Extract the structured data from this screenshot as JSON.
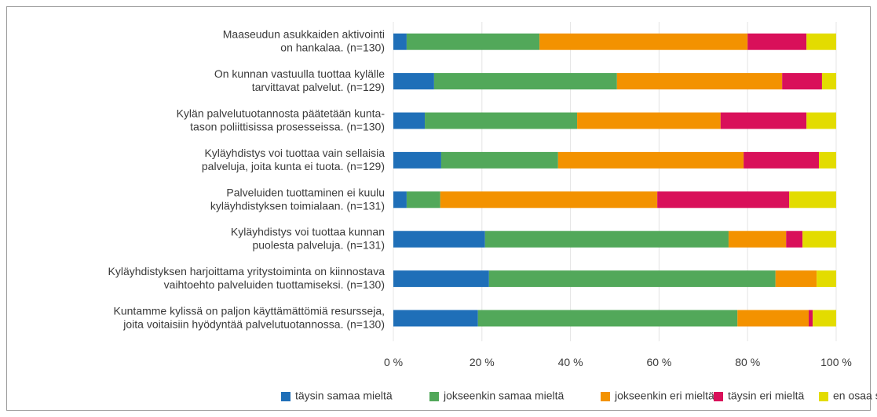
{
  "chart_data": {
    "type": "stacked-barh",
    "categories": [
      "Maaseudun asukkaiden aktivointi\non hankalaa. (n=130)",
      "On kunnan vastuulla tuottaa kylälle\ntarvittavat palvelut. (n=129)",
      "Kylän palvelutuotannosta päätetään kunta-\ntason poliittisissa prosesseissa. (n=130)",
      "Kyläyhdistys voi tuottaa vain sellaisia\npalveluja, joita kunta ei tuota. (n=129)",
      "Palveluiden tuottaminen ei kuulu\nkyläyhdistyksen toimialaan. (n=131)",
      "Kyläyhdistys voi tuottaa kunnan\npuolesta palveluja. (n=131)",
      "Kyläyhdistyksen harjoittama yritystoiminta on kiinnostava\nvaihtoehto palveluiden tuottamiseksi. (n=130)",
      "Kuntamme kylissä on paljon käyttämättömiä resursseja,\njoita voitaisiin hyödyntää palvelutuotannossa. (n=130)"
    ],
    "series": [
      {
        "name": "täysin samaa mieltä",
        "color": "#1f6fb8",
        "values": [
          3.0,
          9.2,
          7.1,
          10.8,
          3.0,
          20.7,
          21.6,
          19.1
        ]
      },
      {
        "name": "jokseenkin samaa mieltä",
        "color": "#52a85a",
        "values": [
          30.0,
          41.3,
          34.4,
          26.4,
          7.6,
          55.0,
          64.7,
          58.6
        ]
      },
      {
        "name": "jokseenkin eri mieltä",
        "color": "#f39200",
        "values": [
          47.0,
          37.3,
          32.4,
          41.9,
          49.0,
          13.0,
          9.3,
          16.1
        ]
      },
      {
        "name": "täysin eri mieltä",
        "color": "#d9105a",
        "values": [
          13.3,
          9.0,
          19.4,
          17.0,
          29.8,
          3.7,
          0,
          0.9
        ]
      },
      {
        "name": "en osaa sanoa",
        "color": "#e3dc00",
        "values": [
          6.7,
          3.2,
          6.7,
          3.9,
          10.6,
          7.6,
          4.4,
          5.3
        ]
      }
    ],
    "xlim": [
      0,
      100
    ],
    "xticks": [
      {
        "value": 0,
        "label": "0 %"
      },
      {
        "value": 20,
        "label": "20 %"
      },
      {
        "value": 40,
        "label": "40 %"
      },
      {
        "value": 60,
        "label": "60 %"
      },
      {
        "value": 80,
        "label": "80 %"
      },
      {
        "value": 100,
        "label": "100 %"
      }
    ],
    "grid": true,
    "legend": "bottom"
  }
}
